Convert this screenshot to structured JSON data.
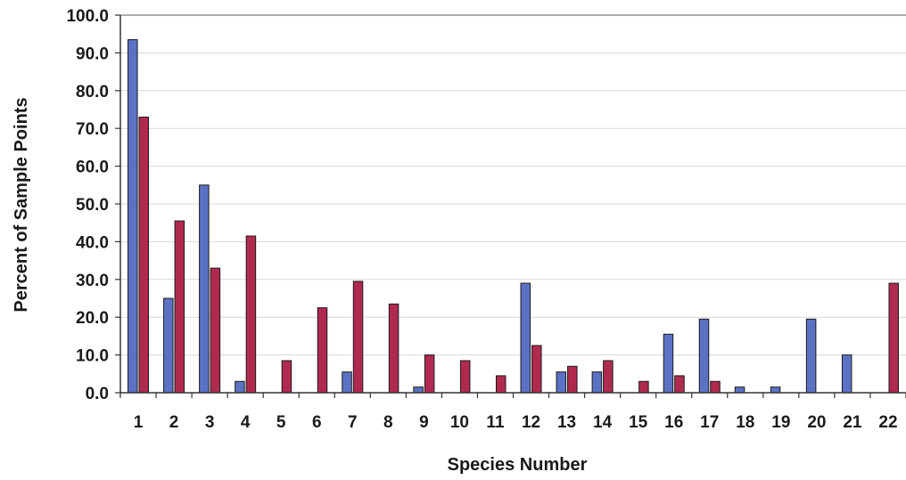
{
  "chart_data": {
    "type": "bar",
    "xlabel": "Species Number",
    "ylabel": "Percent of Sample Points",
    "ylim": [
      0,
      100
    ],
    "ytick_step": 10,
    "ytick_labels": [
      "0.0",
      "10.0",
      "20.0",
      "30.0",
      "40.0",
      "50.0",
      "60.0",
      "70.0",
      "80.0",
      "90.0",
      "100.0"
    ],
    "grid": true,
    "categories": [
      "1",
      "2",
      "3",
      "4",
      "5",
      "6",
      "7",
      "8",
      "9",
      "10",
      "11",
      "12",
      "13",
      "14",
      "15",
      "16",
      "17",
      "18",
      "19",
      "20",
      "21",
      "22"
    ],
    "series": [
      {
        "color": "#5b72c4",
        "values": [
          93.5,
          25.0,
          55.0,
          3.0,
          0.0,
          0.0,
          5.5,
          0.0,
          1.5,
          0.0,
          0.0,
          29.0,
          5.5,
          5.5,
          0.0,
          15.5,
          19.5,
          1.5,
          1.5,
          19.5,
          10.0,
          0.0
        ]
      },
      {
        "color": "#b02a50",
        "values": [
          73.0,
          45.5,
          33.0,
          41.5,
          8.5,
          22.5,
          29.5,
          23.5,
          10.0,
          8.5,
          4.5,
          12.5,
          7.0,
          8.5,
          3.0,
          4.5,
          3.0,
          0.0,
          0.0,
          0.0,
          0.0,
          29.0
        ]
      }
    ]
  }
}
